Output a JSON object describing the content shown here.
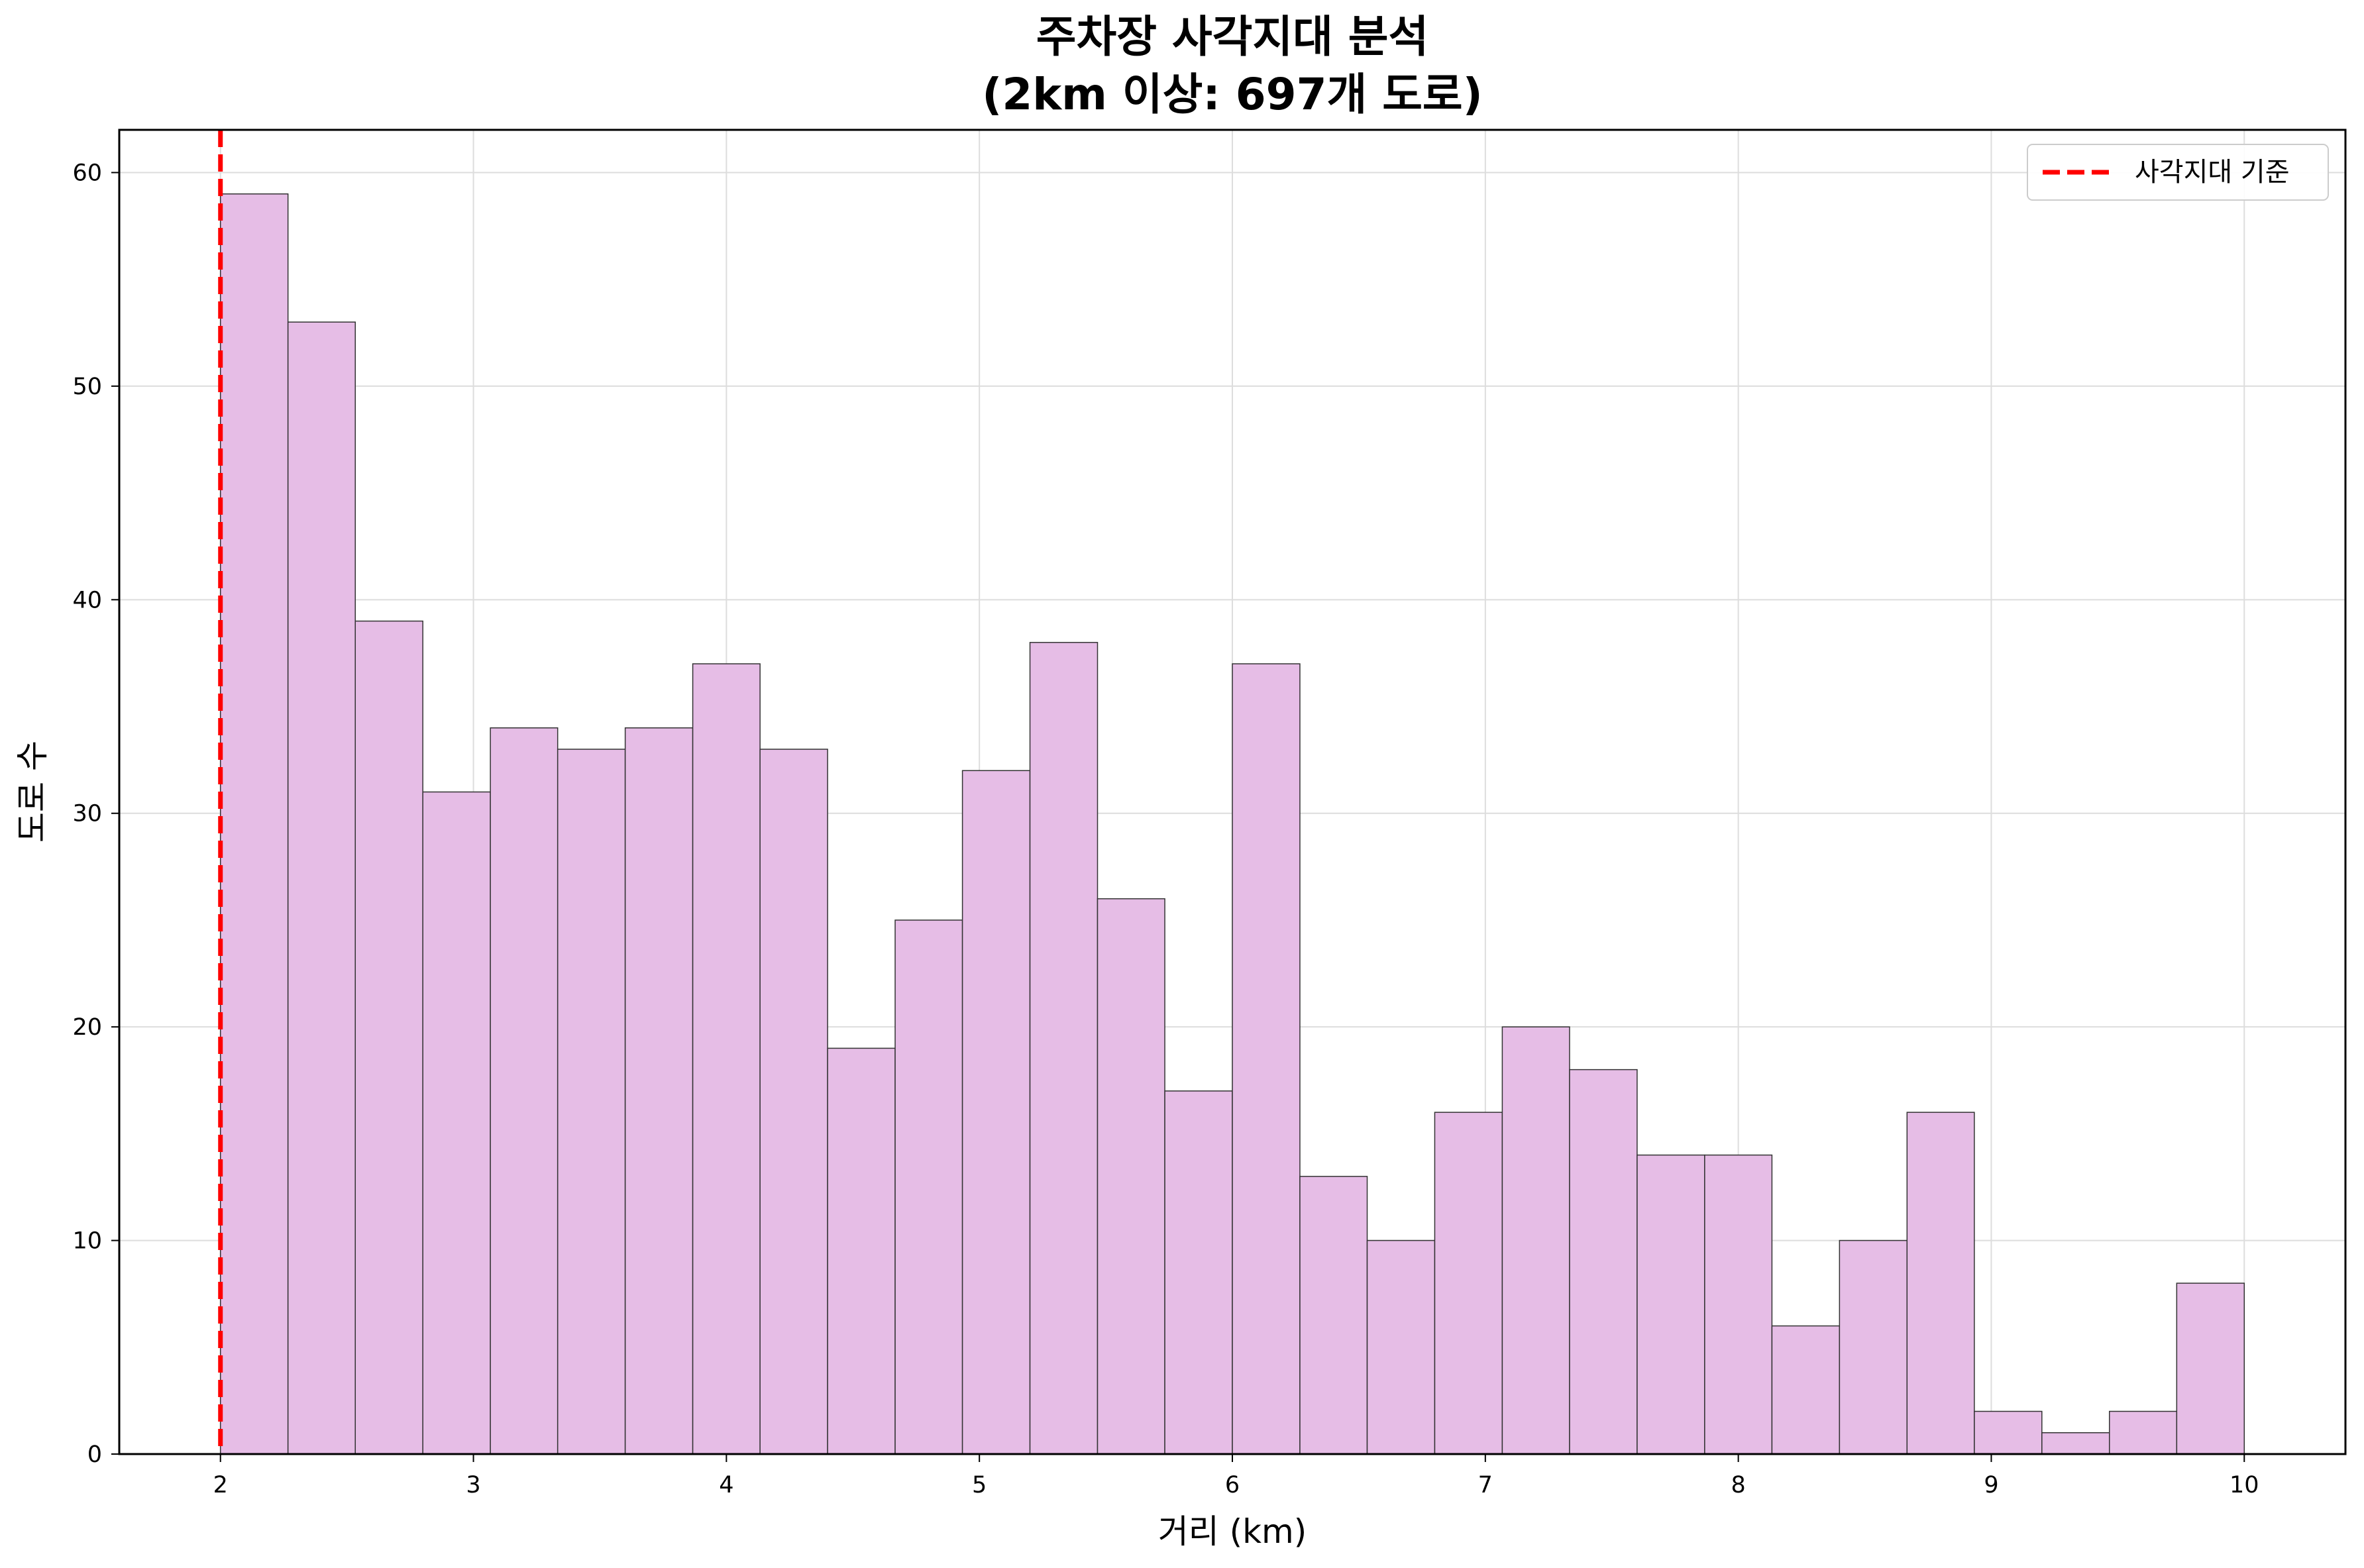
{
  "chart_data": {
    "type": "bar",
    "title_line1": "주차장 사각지대 분석",
    "title_line2": "(2km 이상: 697개 도로)",
    "xlabel": "거리 (km)",
    "ylabel": "도로 수",
    "xlim": [
      1.6,
      10.4
    ],
    "ylim": [
      0,
      62
    ],
    "x_ticks": [
      "2",
      "3",
      "4",
      "5",
      "6",
      "7",
      "8",
      "9",
      "10"
    ],
    "y_ticks": [
      "0",
      "10",
      "20",
      "30",
      "40",
      "50",
      "60"
    ],
    "grid": true,
    "legend_position": "top-right",
    "bar_color": "#e6bde6",
    "bar_edge_color": "#333333",
    "bins": [
      {
        "x0": 2.0,
        "x1": 2.267,
        "count": 59
      },
      {
        "x0": 2.267,
        "x1": 2.533,
        "count": 53
      },
      {
        "x0": 2.533,
        "x1": 2.8,
        "count": 39
      },
      {
        "x0": 2.8,
        "x1": 3.067,
        "count": 31
      },
      {
        "x0": 3.067,
        "x1": 3.333,
        "count": 34
      },
      {
        "x0": 3.333,
        "x1": 3.6,
        "count": 33
      },
      {
        "x0": 3.6,
        "x1": 3.867,
        "count": 34
      },
      {
        "x0": 3.867,
        "x1": 4.133,
        "count": 37
      },
      {
        "x0": 4.133,
        "x1": 4.4,
        "count": 33
      },
      {
        "x0": 4.4,
        "x1": 4.667,
        "count": 19
      },
      {
        "x0": 4.667,
        "x1": 4.933,
        "count": 25
      },
      {
        "x0": 4.933,
        "x1": 5.2,
        "count": 32
      },
      {
        "x0": 5.2,
        "x1": 5.467,
        "count": 38
      },
      {
        "x0": 5.467,
        "x1": 5.733,
        "count": 26
      },
      {
        "x0": 5.733,
        "x1": 6.0,
        "count": 17
      },
      {
        "x0": 6.0,
        "x1": 6.267,
        "count": 37
      },
      {
        "x0": 6.267,
        "x1": 6.533,
        "count": 13
      },
      {
        "x0": 6.533,
        "x1": 6.8,
        "count": 10
      },
      {
        "x0": 6.8,
        "x1": 7.067,
        "count": 16
      },
      {
        "x0": 7.067,
        "x1": 7.333,
        "count": 20
      },
      {
        "x0": 7.333,
        "x1": 7.6,
        "count": 18
      },
      {
        "x0": 7.6,
        "x1": 7.867,
        "count": 14
      },
      {
        "x0": 7.867,
        "x1": 8.133,
        "count": 14
      },
      {
        "x0": 8.133,
        "x1": 8.4,
        "count": 6
      },
      {
        "x0": 8.4,
        "x1": 8.667,
        "count": 10
      },
      {
        "x0": 8.667,
        "x1": 8.933,
        "count": 16
      },
      {
        "x0": 8.933,
        "x1": 9.2,
        "count": 2
      },
      {
        "x0": 9.2,
        "x1": 9.467,
        "count": 1
      },
      {
        "x0": 9.467,
        "x1": 9.733,
        "count": 2
      },
      {
        "x0": 9.733,
        "x1": 10.0,
        "count": 8
      }
    ],
    "threshold": {
      "x": 2,
      "label": "사각지대 기준",
      "color": "#ff0000"
    }
  }
}
